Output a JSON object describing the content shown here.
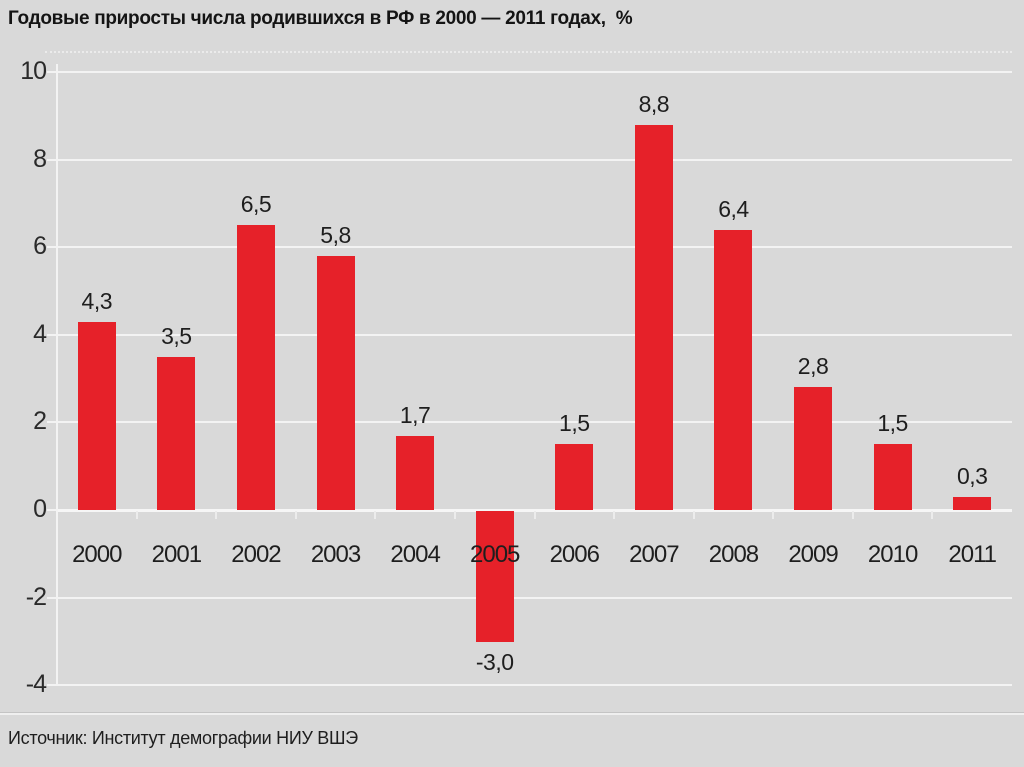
{
  "title": "Годовые приросты числа родившихся в РФ в 2000 — 2011 годах,  %",
  "source": "Источник: Институт демографии НИУ ВШЭ",
  "colors": {
    "background": "#d9d9d9",
    "bar": "#e62129",
    "gridline": "#f3f3f3",
    "text": "#1e1e1e"
  },
  "chart_data": {
    "type": "bar",
    "title": "Годовые приросты числа родившихся в РФ в 2000 — 2011 годах, %",
    "categories": [
      "2000",
      "2001",
      "2002",
      "2003",
      "2004",
      "2005",
      "2006",
      "2007",
      "2008",
      "2009",
      "2010",
      "2011"
    ],
    "values": [
      4.3,
      3.5,
      6.5,
      5.8,
      1.7,
      -3.0,
      1.5,
      8.8,
      6.4,
      2.8,
      1.5,
      0.3
    ],
    "value_labels": [
      "4,3",
      "3,5",
      "6,5",
      "5,8",
      "1,7",
      "-3,0",
      "1,5",
      "8,8",
      "6,4",
      "2,8",
      "1,5",
      "0,3"
    ],
    "xlabel": "",
    "ylabel": "%",
    "ylim": [
      -4,
      10
    ],
    "yticks": [
      10,
      8,
      6,
      4,
      2,
      0,
      -2,
      -4
    ],
    "grid": true,
    "legend": false,
    "bar_color": "#e62129",
    "source": "Источник: Институт демографии НИУ ВШЭ"
  }
}
